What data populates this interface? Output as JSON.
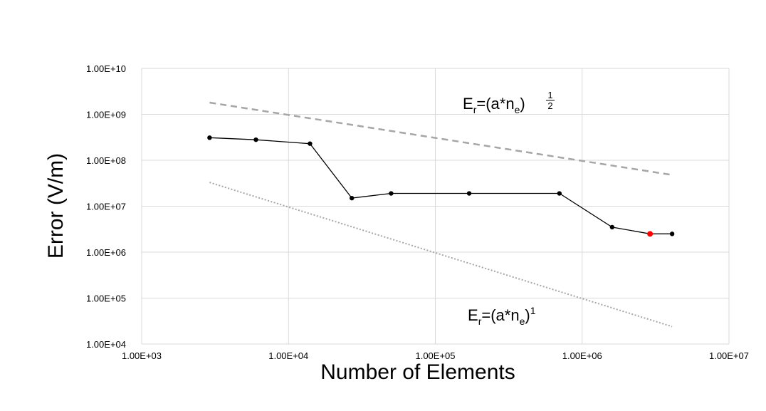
{
  "chart_data": {
    "type": "scatter",
    "xscale": "log",
    "yscale": "log",
    "xlim": [
      1000,
      10000000
    ],
    "ylim": [
      10000,
      10000000000
    ],
    "grid": true,
    "xlabel": "Number of Elements",
    "ylabel": "Error (V/m)",
    "x_tick_labels": [
      "1.00E+03",
      "1.00E+04",
      "1.00E+05",
      "1.00E+06",
      "1.00E+07"
    ],
    "y_tick_labels": [
      "1.00E+04",
      "1.00E+05",
      "1.00E+06",
      "1.00E+07",
      "1.00E+08",
      "1.00E+09",
      "1.00E+10"
    ],
    "series": [
      {
        "style": "solid-line-markers",
        "color": "#000000",
        "x": [
          2900,
          6000,
          14000,
          27000,
          50000,
          170000,
          700000,
          1600000,
          2900000,
          4100000
        ],
        "y": [
          310000000,
          280000000,
          230000000,
          15000000,
          19000000,
          19000000,
          19000000,
          3500000,
          2500000,
          2500000
        ],
        "highlight_index": 8,
        "highlight_color": "#ff0000"
      },
      {
        "style": "dashed",
        "color": "#a6a6a6",
        "x": [
          2900,
          4100000
        ],
        "y": [
          1800000000,
          48000000
        ]
      },
      {
        "style": "dotted",
        "color": "#a6a6a6",
        "x": [
          2900,
          4100000
        ],
        "y": [
          33000000,
          24000
        ]
      }
    ],
    "annotations": {
      "upper": {
        "base": "E",
        "sub1": "r",
        "mid": "=(a*n",
        "sub2": "e",
        "close": ")",
        "frac_num": "1",
        "frac_den": "2"
      },
      "lower": {
        "base": "E",
        "sub1": "r",
        "mid": "=(a*n",
        "sub2": "e",
        "close": ")",
        "exp": "1"
      }
    }
  }
}
